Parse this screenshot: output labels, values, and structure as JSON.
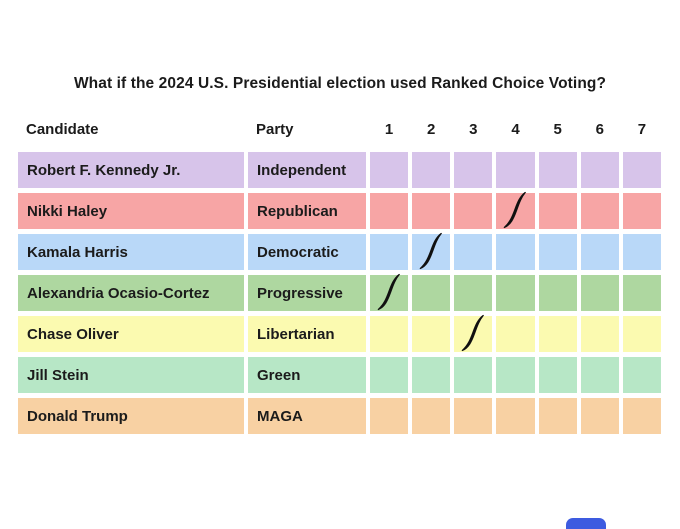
{
  "page": {
    "title": "What if the 2024 U.S. Presidential election used Ranked Choice Voting?"
  },
  "table": {
    "headers": {
      "candidate": "Candidate",
      "party": "Party",
      "ranks": [
        "1",
        "2",
        "3",
        "4",
        "5",
        "6",
        "7"
      ]
    },
    "rows": [
      {
        "candidate": "Robert F. Kennedy Jr.",
        "party": "Independent",
        "color": "#d7c4ea",
        "mark": null
      },
      {
        "candidate": "Nikki Haley",
        "party": "Republican",
        "color": "#f7a5a5",
        "mark": 4
      },
      {
        "candidate": "Kamala Harris",
        "party": "Democratic",
        "color": "#b9d8f8",
        "mark": 2
      },
      {
        "candidate": "Alexandria Ocasio-Cortez",
        "party": "Progressive",
        "color": "#aed7a0",
        "mark": 1
      },
      {
        "candidate": "Chase Oliver",
        "party": "Libertarian",
        "color": "#fbfab0",
        "mark": 3
      },
      {
        "candidate": "Jill Stein",
        "party": "Green",
        "color": "#b7e7c6",
        "mark": null
      },
      {
        "candidate": "Donald Trump",
        "party": "MAGA",
        "color": "#f8d1a3",
        "mark": null
      }
    ]
  },
  "decor": {
    "mark_color": "#111111",
    "cropped_element_color": "#3d5be0"
  }
}
